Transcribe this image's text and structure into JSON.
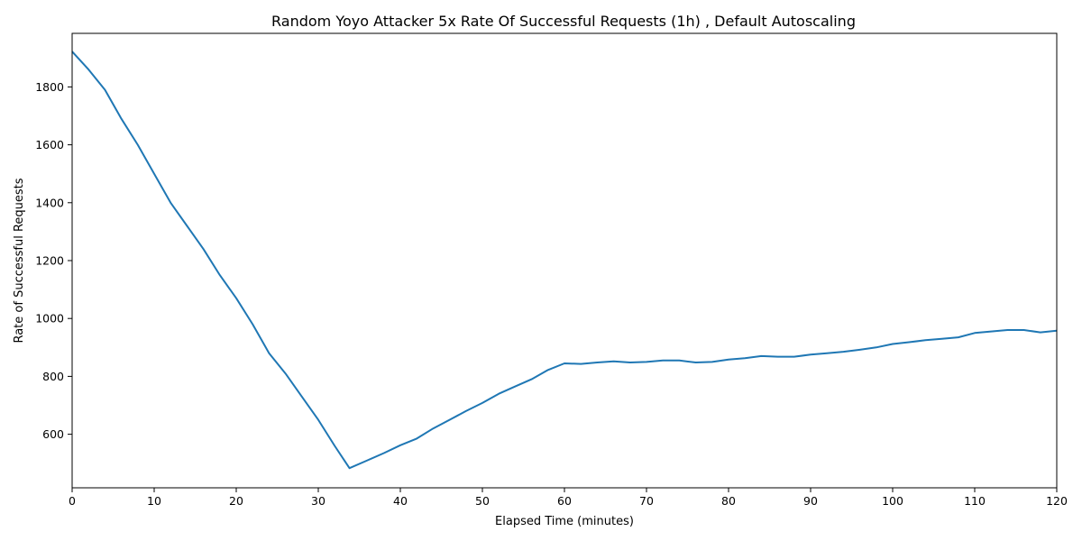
{
  "chart_data": {
    "type": "line",
    "title": "Random Yoyo Attacker 5x Rate Of Successful Requests (1h) , Default Autoscaling",
    "xlabel": "Elapsed Time (minutes)",
    "ylabel": "Rate of Successful Requests",
    "xlim": [
      0,
      120
    ],
    "ylim": [
      415,
      1985
    ],
    "xticks": [
      0,
      10,
      20,
      30,
      40,
      50,
      60,
      70,
      80,
      90,
      100,
      110,
      120
    ],
    "yticks": [
      600,
      800,
      1000,
      1200,
      1400,
      1600,
      1800
    ],
    "grid": false,
    "line_color": "#1f77b4",
    "series": [
      {
        "points": [
          [
            0,
            1922
          ],
          [
            2,
            1860
          ],
          [
            4,
            1790
          ],
          [
            6,
            1690
          ],
          [
            8,
            1600
          ],
          [
            10,
            1500
          ],
          [
            12,
            1400
          ],
          [
            14,
            1320
          ],
          [
            16,
            1240
          ],
          [
            18,
            1150
          ],
          [
            20,
            1070
          ],
          [
            22,
            980
          ],
          [
            24,
            880
          ],
          [
            26,
            810
          ],
          [
            28,
            730
          ],
          [
            30,
            650
          ],
          [
            32,
            560
          ],
          [
            33.8,
            483
          ],
          [
            36,
            510
          ],
          [
            38,
            535
          ],
          [
            40,
            562
          ],
          [
            42,
            585
          ],
          [
            44,
            620
          ],
          [
            46,
            650
          ],
          [
            48,
            680
          ],
          [
            50,
            708
          ],
          [
            52,
            740
          ],
          [
            54,
            765
          ],
          [
            56,
            790
          ],
          [
            58,
            822
          ],
          [
            60,
            845
          ],
          [
            62,
            843
          ],
          [
            64,
            848
          ],
          [
            66,
            852
          ],
          [
            68,
            848
          ],
          [
            70,
            850
          ],
          [
            72,
            855
          ],
          [
            74,
            855
          ],
          [
            76,
            848
          ],
          [
            78,
            850
          ],
          [
            80,
            858
          ],
          [
            82,
            863
          ],
          [
            84,
            870
          ],
          [
            86,
            868
          ],
          [
            88,
            868
          ],
          [
            90,
            875
          ],
          [
            92,
            880
          ],
          [
            94,
            885
          ],
          [
            96,
            892
          ],
          [
            98,
            900
          ],
          [
            100,
            912
          ],
          [
            102,
            918
          ],
          [
            104,
            925
          ],
          [
            106,
            930
          ],
          [
            108,
            935
          ],
          [
            110,
            950
          ],
          [
            112,
            955
          ],
          [
            114,
            960
          ],
          [
            116,
            960
          ],
          [
            118,
            952
          ],
          [
            120,
            958
          ]
        ]
      }
    ]
  }
}
